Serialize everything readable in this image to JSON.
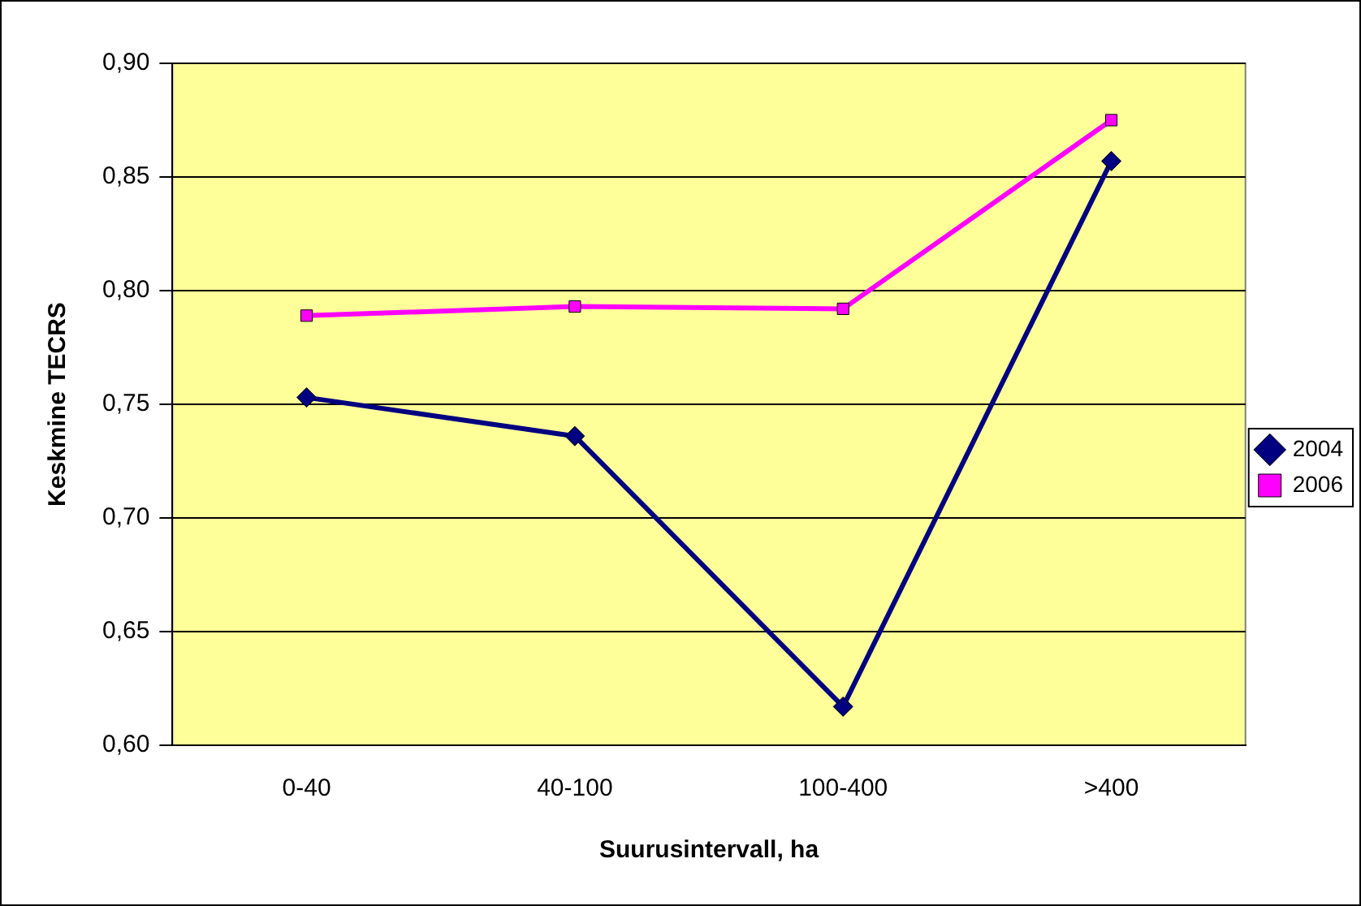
{
  "chart_data": {
    "type": "line",
    "xlabel": "Suurusintervall, ha",
    "ylabel": "Keskmine TECRS",
    "categories": [
      "0-40",
      "40-100",
      "100-400",
      ">400"
    ],
    "series": [
      {
        "name": "2004",
        "color": "#000080",
        "marker": "diamond",
        "values": [
          0.753,
          0.736,
          0.617,
          0.857
        ]
      },
      {
        "name": "2006",
        "color": "#ff00ff",
        "marker": "square",
        "values": [
          0.789,
          0.793,
          0.792,
          0.875
        ]
      }
    ],
    "ylim": [
      0.6,
      0.9
    ],
    "yticks": [
      {
        "value": 0.6,
        "label": "0,60"
      },
      {
        "value": 0.65,
        "label": "0,65"
      },
      {
        "value": 0.7,
        "label": "0,70"
      },
      {
        "value": 0.75,
        "label": "0,75"
      },
      {
        "value": 0.8,
        "label": "0,80"
      },
      {
        "value": 0.85,
        "label": "0,85"
      },
      {
        "value": 0.9,
        "label": "0,90"
      }
    ],
    "grid": "y",
    "legend": "right"
  }
}
